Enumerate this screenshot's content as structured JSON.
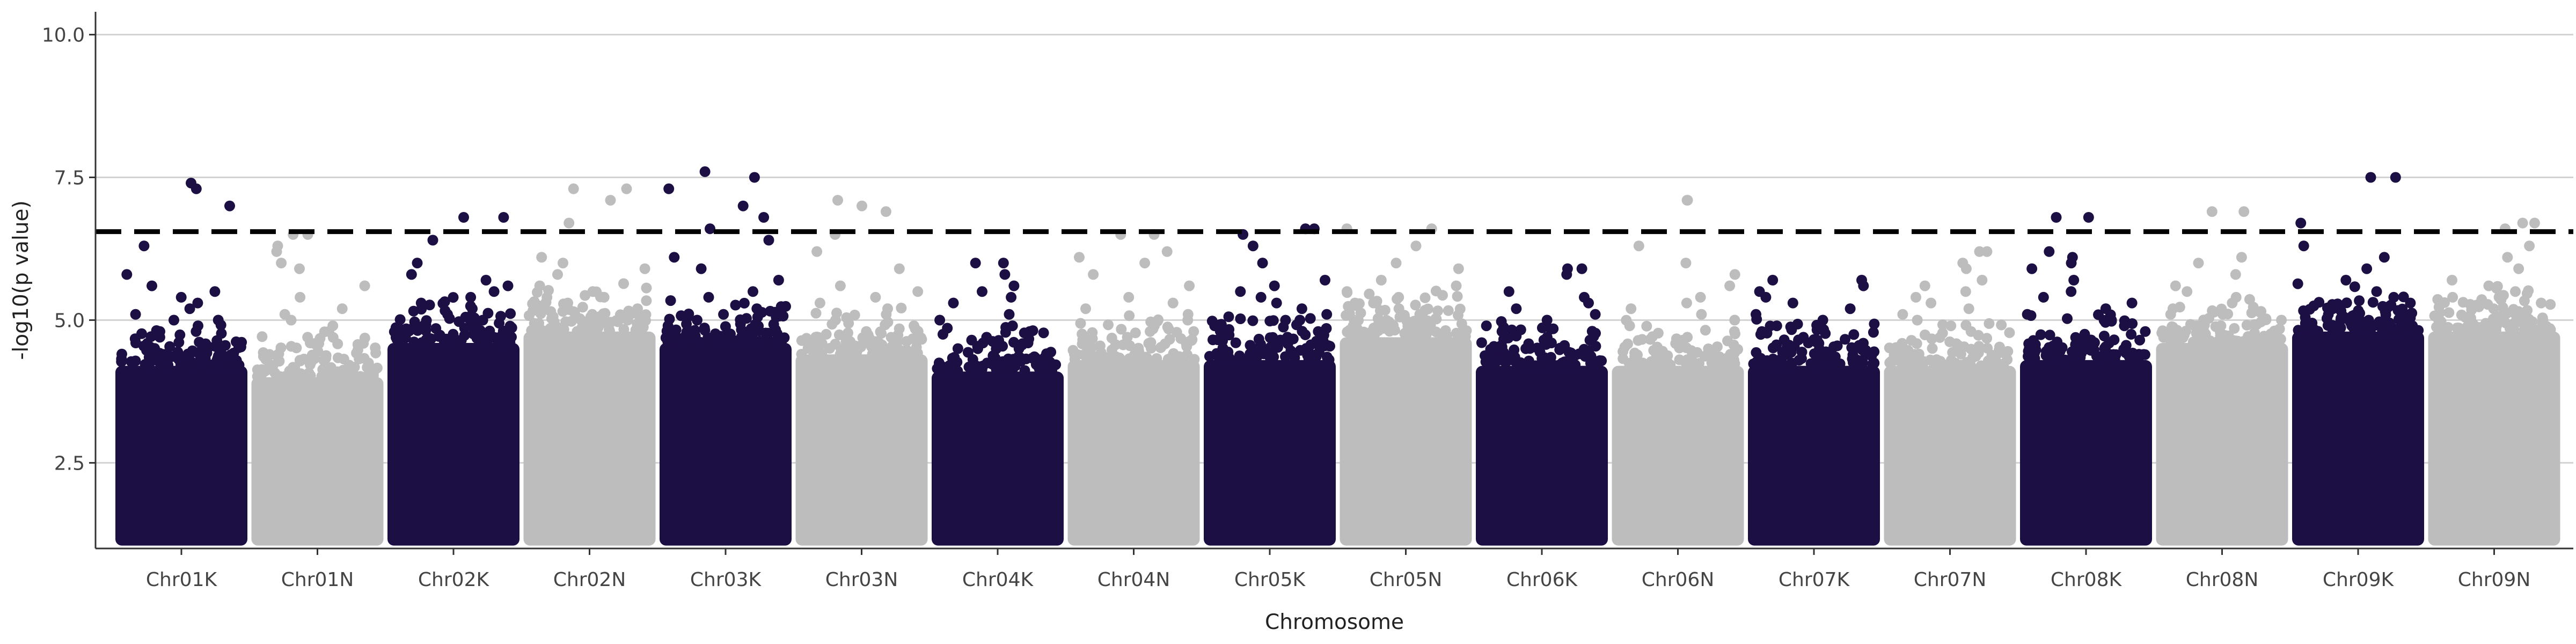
{
  "chart_data": {
    "type": "scatter",
    "subtype": "manhattan",
    "xlabel": "Chromosome",
    "ylabel": "-log10(p value)",
    "ylim": [
      1,
      10.4
    ],
    "yticks": [
      2.5,
      5.0,
      7.5,
      10.0
    ],
    "ytick_labels": [
      "2.5",
      "5.0",
      "7.5",
      "10.0"
    ],
    "threshold": 6.55,
    "grid": "horizontal major",
    "legend": "none",
    "colors": {
      "dark": "#1c0f44",
      "light": "#bdbdbd",
      "threshold": "#000000",
      "grid": "#d3d3d3"
    },
    "categories": [
      "Chr01K",
      "Chr01N",
      "Chr02K",
      "Chr02N",
      "Chr03K",
      "Chr03N",
      "Chr04K",
      "Chr04N",
      "Chr05K",
      "Chr05N",
      "Chr06K",
      "Chr06N",
      "Chr07K",
      "Chr07N",
      "Chr08K",
      "Chr08N",
      "Chr09K",
      "Chr09N"
    ],
    "series": [
      {
        "category": "Chr01K",
        "color": "dark",
        "dense_top": 4.2,
        "upper_points": [
          7.3,
          7.0,
          6.3,
          5.8,
          5.6,
          5.5,
          5.4,
          5.3,
          5.2,
          5.1,
          5.0,
          5.0,
          4.9,
          4.8,
          4.7,
          4.6
        ],
        "peak": 7.4
      },
      {
        "category": "Chr01N",
        "color": "light",
        "dense_top": 4.0,
        "upper_points": [
          6.5,
          6.3,
          6.2,
          6.0,
          5.9,
          5.6,
          5.4,
          5.2,
          5.1,
          5.0,
          4.9,
          4.8,
          4.7,
          4.6
        ],
        "peak": 6.5
      },
      {
        "category": "Chr02K",
        "color": "dark",
        "dense_top": 4.6,
        "upper_points": [
          6.8,
          6.4,
          6.0,
          5.8,
          5.7,
          5.6,
          5.5,
          5.4,
          5.3,
          5.2,
          5.1,
          5.0,
          4.9,
          4.8
        ],
        "peak": 6.8
      },
      {
        "category": "Chr02N",
        "color": "light",
        "dense_top": 4.8,
        "upper_points": [
          7.3,
          7.1,
          6.7,
          6.1,
          6.0,
          5.9,
          5.8,
          5.6,
          5.5,
          5.4,
          5.3,
          5.2,
          5.1,
          5.0
        ],
        "peak": 7.3
      },
      {
        "category": "Chr03K",
        "color": "dark",
        "dense_top": 4.6,
        "upper_points": [
          7.5,
          7.3,
          7.0,
          6.8,
          6.6,
          6.4,
          6.1,
          5.9,
          5.7,
          5.5,
          5.4,
          5.2,
          5.1,
          5.0,
          4.9
        ],
        "peak": 7.6
      },
      {
        "category": "Chr03N",
        "color": "light",
        "dense_top": 4.4,
        "upper_points": [
          7.0,
          6.9,
          6.5,
          6.2,
          5.9,
          5.6,
          5.5,
          5.4,
          5.3,
          5.2,
          5.1,
          5.0,
          4.9,
          4.8
        ],
        "peak": 7.1
      },
      {
        "category": "Chr04K",
        "color": "dark",
        "dense_top": 4.1,
        "upper_points": [
          6.0,
          5.8,
          5.6,
          5.5,
          5.4,
          5.3,
          5.1,
          5.0,
          4.9,
          4.8,
          4.7,
          4.6,
          4.5
        ],
        "peak": 6.0
      },
      {
        "category": "Chr04N",
        "color": "light",
        "dense_top": 4.3,
        "upper_points": [
          6.5,
          6.2,
          6.1,
          6.0,
          5.8,
          5.6,
          5.4,
          5.3,
          5.2,
          5.1,
          5.0,
          4.9,
          4.8,
          4.7
        ],
        "peak": 6.5
      },
      {
        "category": "Chr05K",
        "color": "dark",
        "dense_top": 4.3,
        "upper_points": [
          6.6,
          6.5,
          6.3,
          6.0,
          5.7,
          5.6,
          5.5,
          5.4,
          5.3,
          5.2,
          5.1,
          5.0,
          4.9,
          4.8
        ],
        "peak": 6.6
      },
      {
        "category": "Chr05N",
        "color": "light",
        "dense_top": 4.7,
        "upper_points": [
          6.6,
          6.3,
          6.0,
          5.9,
          5.7,
          5.6,
          5.5,
          5.4,
          5.3,
          5.2,
          5.1,
          5.0,
          4.9
        ],
        "peak": 6.6
      },
      {
        "category": "Chr06K",
        "color": "dark",
        "dense_top": 4.2,
        "upper_points": [
          5.9,
          5.8,
          5.5,
          5.4,
          5.3,
          5.2,
          5.1,
          5.0,
          4.9,
          4.8,
          4.7,
          4.6
        ],
        "peak": 5.9
      },
      {
        "category": "Chr06N",
        "color": "light",
        "dense_top": 4.2,
        "upper_points": [
          7.1,
          6.3,
          6.0,
          5.8,
          5.6,
          5.4,
          5.3,
          5.2,
          5.1,
          5.0,
          4.9,
          4.8,
          4.7
        ],
        "peak": 7.1
      },
      {
        "category": "Chr07K",
        "color": "dark",
        "dense_top": 4.2,
        "upper_points": [
          5.7,
          5.6,
          5.5,
          5.4,
          5.3,
          5.2,
          5.1,
          5.0,
          4.9,
          4.8,
          4.7,
          4.6
        ],
        "peak": 5.7
      },
      {
        "category": "Chr07N",
        "color": "light",
        "dense_top": 4.2,
        "upper_points": [
          6.2,
          6.0,
          5.9,
          5.7,
          5.6,
          5.5,
          5.4,
          5.3,
          5.2,
          5.1,
          5.0,
          4.9,
          4.8
        ],
        "peak": 6.2
      },
      {
        "category": "Chr08K",
        "color": "dark",
        "dense_top": 4.3,
        "upper_points": [
          6.8,
          6.2,
          6.1,
          6.0,
          5.9,
          5.7,
          5.5,
          5.4,
          5.3,
          5.2,
          5.1,
          5.0,
          4.9,
          4.8
        ],
        "peak": 6.8
      },
      {
        "category": "Chr08N",
        "color": "light",
        "dense_top": 4.6,
        "upper_points": [
          6.9,
          6.1,
          6.0,
          5.8,
          5.6,
          5.5,
          5.4,
          5.3,
          5.2,
          5.1,
          5.0,
          4.9
        ],
        "peak": 6.9
      },
      {
        "category": "Chr09K",
        "color": "dark",
        "dense_top": 4.8,
        "upper_points": [
          7.5,
          6.7,
          6.3,
          6.1,
          5.9,
          5.7,
          5.5,
          5.4,
          5.3,
          5.2,
          5.1,
          5.0,
          4.9
        ],
        "peak": 7.5
      },
      {
        "category": "Chr09N",
        "color": "light",
        "dense_top": 4.8,
        "upper_points": [
          6.7,
          6.6,
          6.3,
          6.1,
          5.9,
          5.7,
          5.6,
          5.5,
          5.4,
          5.3,
          5.2,
          5.1,
          5.0
        ],
        "peak": 6.7
      }
    ]
  }
}
